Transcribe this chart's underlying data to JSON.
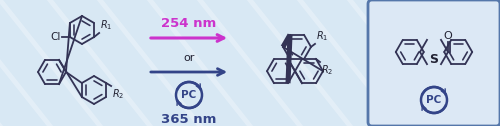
{
  "bg_color": "#d8e8f4",
  "box_bg": "#ddeeff",
  "box_border": "#5577aa",
  "arrow_color_top": "#cc33cc",
  "arrow_color_bot": "#334488",
  "or_text": "or",
  "nm_top": "254 nm",
  "nm_bot": "365 nm",
  "pc_text": "PC",
  "line_color": "#333355",
  "text_color": "#222233",
  "bond_lw": 1.3,
  "fig_w": 5.0,
  "fig_h": 1.26,
  "dpi": 100
}
